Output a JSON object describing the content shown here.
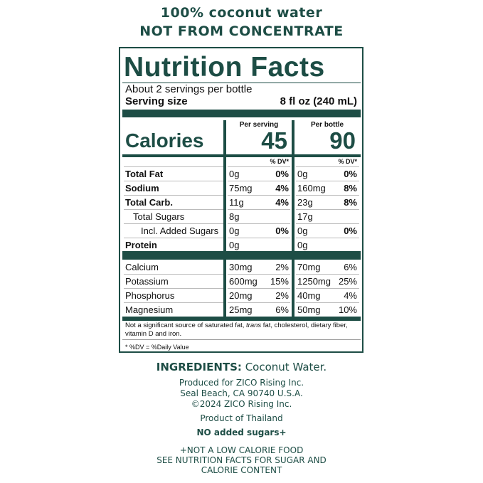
{
  "header": {
    "line1": "100% coconut water",
    "line2": "NOT FROM CONCENTRATE"
  },
  "label": {
    "title": "Nutrition Facts",
    "servings": "About 2 servings per bottle",
    "serving_size_label": "Serving size",
    "serving_size": "8 fl oz (240 mL)",
    "calories_label": "Calories",
    "columns": [
      {
        "heading": "Per serving",
        "calories": "45",
        "dv_heading": "% DV*"
      },
      {
        "heading": "Per bottle",
        "calories": "90",
        "dv_heading": "% DV*"
      }
    ],
    "nutrients": [
      {
        "name": "Total Fat",
        "bold": true,
        "indent": 0,
        "values": [
          {
            "amount": "0g",
            "dv": "0%"
          },
          {
            "amount": "0g",
            "dv": "0%"
          }
        ]
      },
      {
        "name": "Sodium",
        "bold": true,
        "indent": 0,
        "values": [
          {
            "amount": "75mg",
            "dv": "4%"
          },
          {
            "amount": "160mg",
            "dv": "8%"
          }
        ]
      },
      {
        "name": "Total Carb.",
        "bold": true,
        "indent": 0,
        "values": [
          {
            "amount": "11g",
            "dv": "4%"
          },
          {
            "amount": "23g",
            "dv": "8%"
          }
        ]
      },
      {
        "name": "Total Sugars",
        "bold": false,
        "indent": 1,
        "values": [
          {
            "amount": "8g"
          },
          {
            "amount": "17g"
          }
        ]
      },
      {
        "name": "Incl. Added Sugars",
        "bold": false,
        "indent": 2,
        "values": [
          {
            "amount": "0g",
            "dv": "0%"
          },
          {
            "amount": "0g",
            "dv": "0%"
          }
        ]
      },
      {
        "name": "Protein",
        "bold": true,
        "indent": 0,
        "values": [
          {
            "amount": "0g"
          },
          {
            "amount": "0g"
          }
        ]
      }
    ],
    "minerals": [
      {
        "name": "Calcium",
        "values": [
          {
            "amount": "30mg",
            "dv": "2%"
          },
          {
            "amount": "70mg",
            "dv": "6%"
          }
        ]
      },
      {
        "name": "Potassium",
        "values": [
          {
            "amount": "600mg",
            "dv": "15%"
          },
          {
            "amount": "1250mg",
            "dv": "25%"
          }
        ]
      },
      {
        "name": "Phosphorus",
        "values": [
          {
            "amount": "20mg",
            "dv": "2%"
          },
          {
            "amount": "40mg",
            "dv": "4%"
          }
        ]
      },
      {
        "name": "Magnesium",
        "values": [
          {
            "amount": "25mg",
            "dv": "6%"
          },
          {
            "amount": "50mg",
            "dv": "10%"
          }
        ]
      }
    ],
    "footnote": [
      "Not a significant source of saturated fat, ",
      "trans",
      " fat, cholesterol, dietary fiber, vitamin D and iron."
    ],
    "dv_note": "* %DV = %Daily Value"
  },
  "ingredients": {
    "label": "INGREDIENTS:",
    "text": "Coconut Water."
  },
  "producer": [
    "Produced for ZICO Rising Inc.",
    "Seal Beach, CA 90740 U.S.A.",
    "©2024 ZICO Rising Inc."
  ],
  "origin": "Product of Thailand",
  "claim": "NO added sugars+",
  "disclaimer": [
    "+NOT A LOW CALORIE FOOD",
    "SEE NUTRITION FACTS FOR SUGAR AND",
    "CALORIE CONTENT"
  ]
}
